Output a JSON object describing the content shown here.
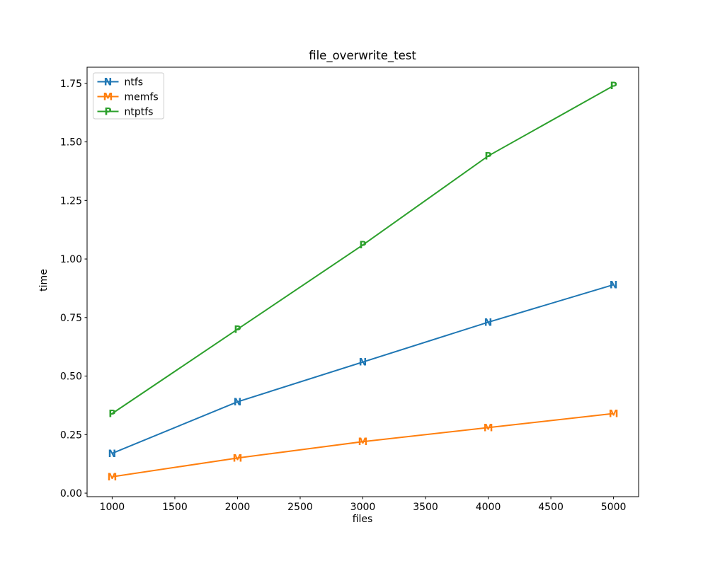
{
  "figure": {
    "background": "#ffffff",
    "spine_color": "#000000",
    "text_color": "#000000"
  },
  "chart_data": {
    "type": "line",
    "title": "file_overwrite_test",
    "xlabel": "files",
    "ylabel": "time",
    "x": [
      1000,
      2000,
      3000,
      4000,
      5000
    ],
    "series": [
      {
        "name": "ntfs",
        "color": "#1f77b4",
        "marker": "N",
        "values": [
          0.17,
          0.39,
          0.56,
          0.73,
          0.89
        ]
      },
      {
        "name": "memfs",
        "color": "#ff7f0e",
        "marker": "M",
        "values": [
          0.07,
          0.15,
          0.22,
          0.28,
          0.34
        ]
      },
      {
        "name": "ntptfs",
        "color": "#2ca02c",
        "marker": "P",
        "values": [
          0.34,
          0.7,
          1.06,
          1.44,
          1.74
        ]
      }
    ],
    "xlim": [
      800,
      5200
    ],
    "ylim": [
      -0.015,
      1.819
    ],
    "x_ticks": [
      "1000",
      "1500",
      "2000",
      "2500",
      "3000",
      "3500",
      "4000",
      "4500",
      "5000"
    ],
    "y_ticks": [
      "0.00",
      "0.25",
      "0.50",
      "0.75",
      "1.00",
      "1.25",
      "1.50",
      "1.75"
    ],
    "grid": false,
    "legend_position": "upper left",
    "legend_border_color": "#cccccc",
    "legend_background": "rgba(255,255,255,0.8)"
  }
}
